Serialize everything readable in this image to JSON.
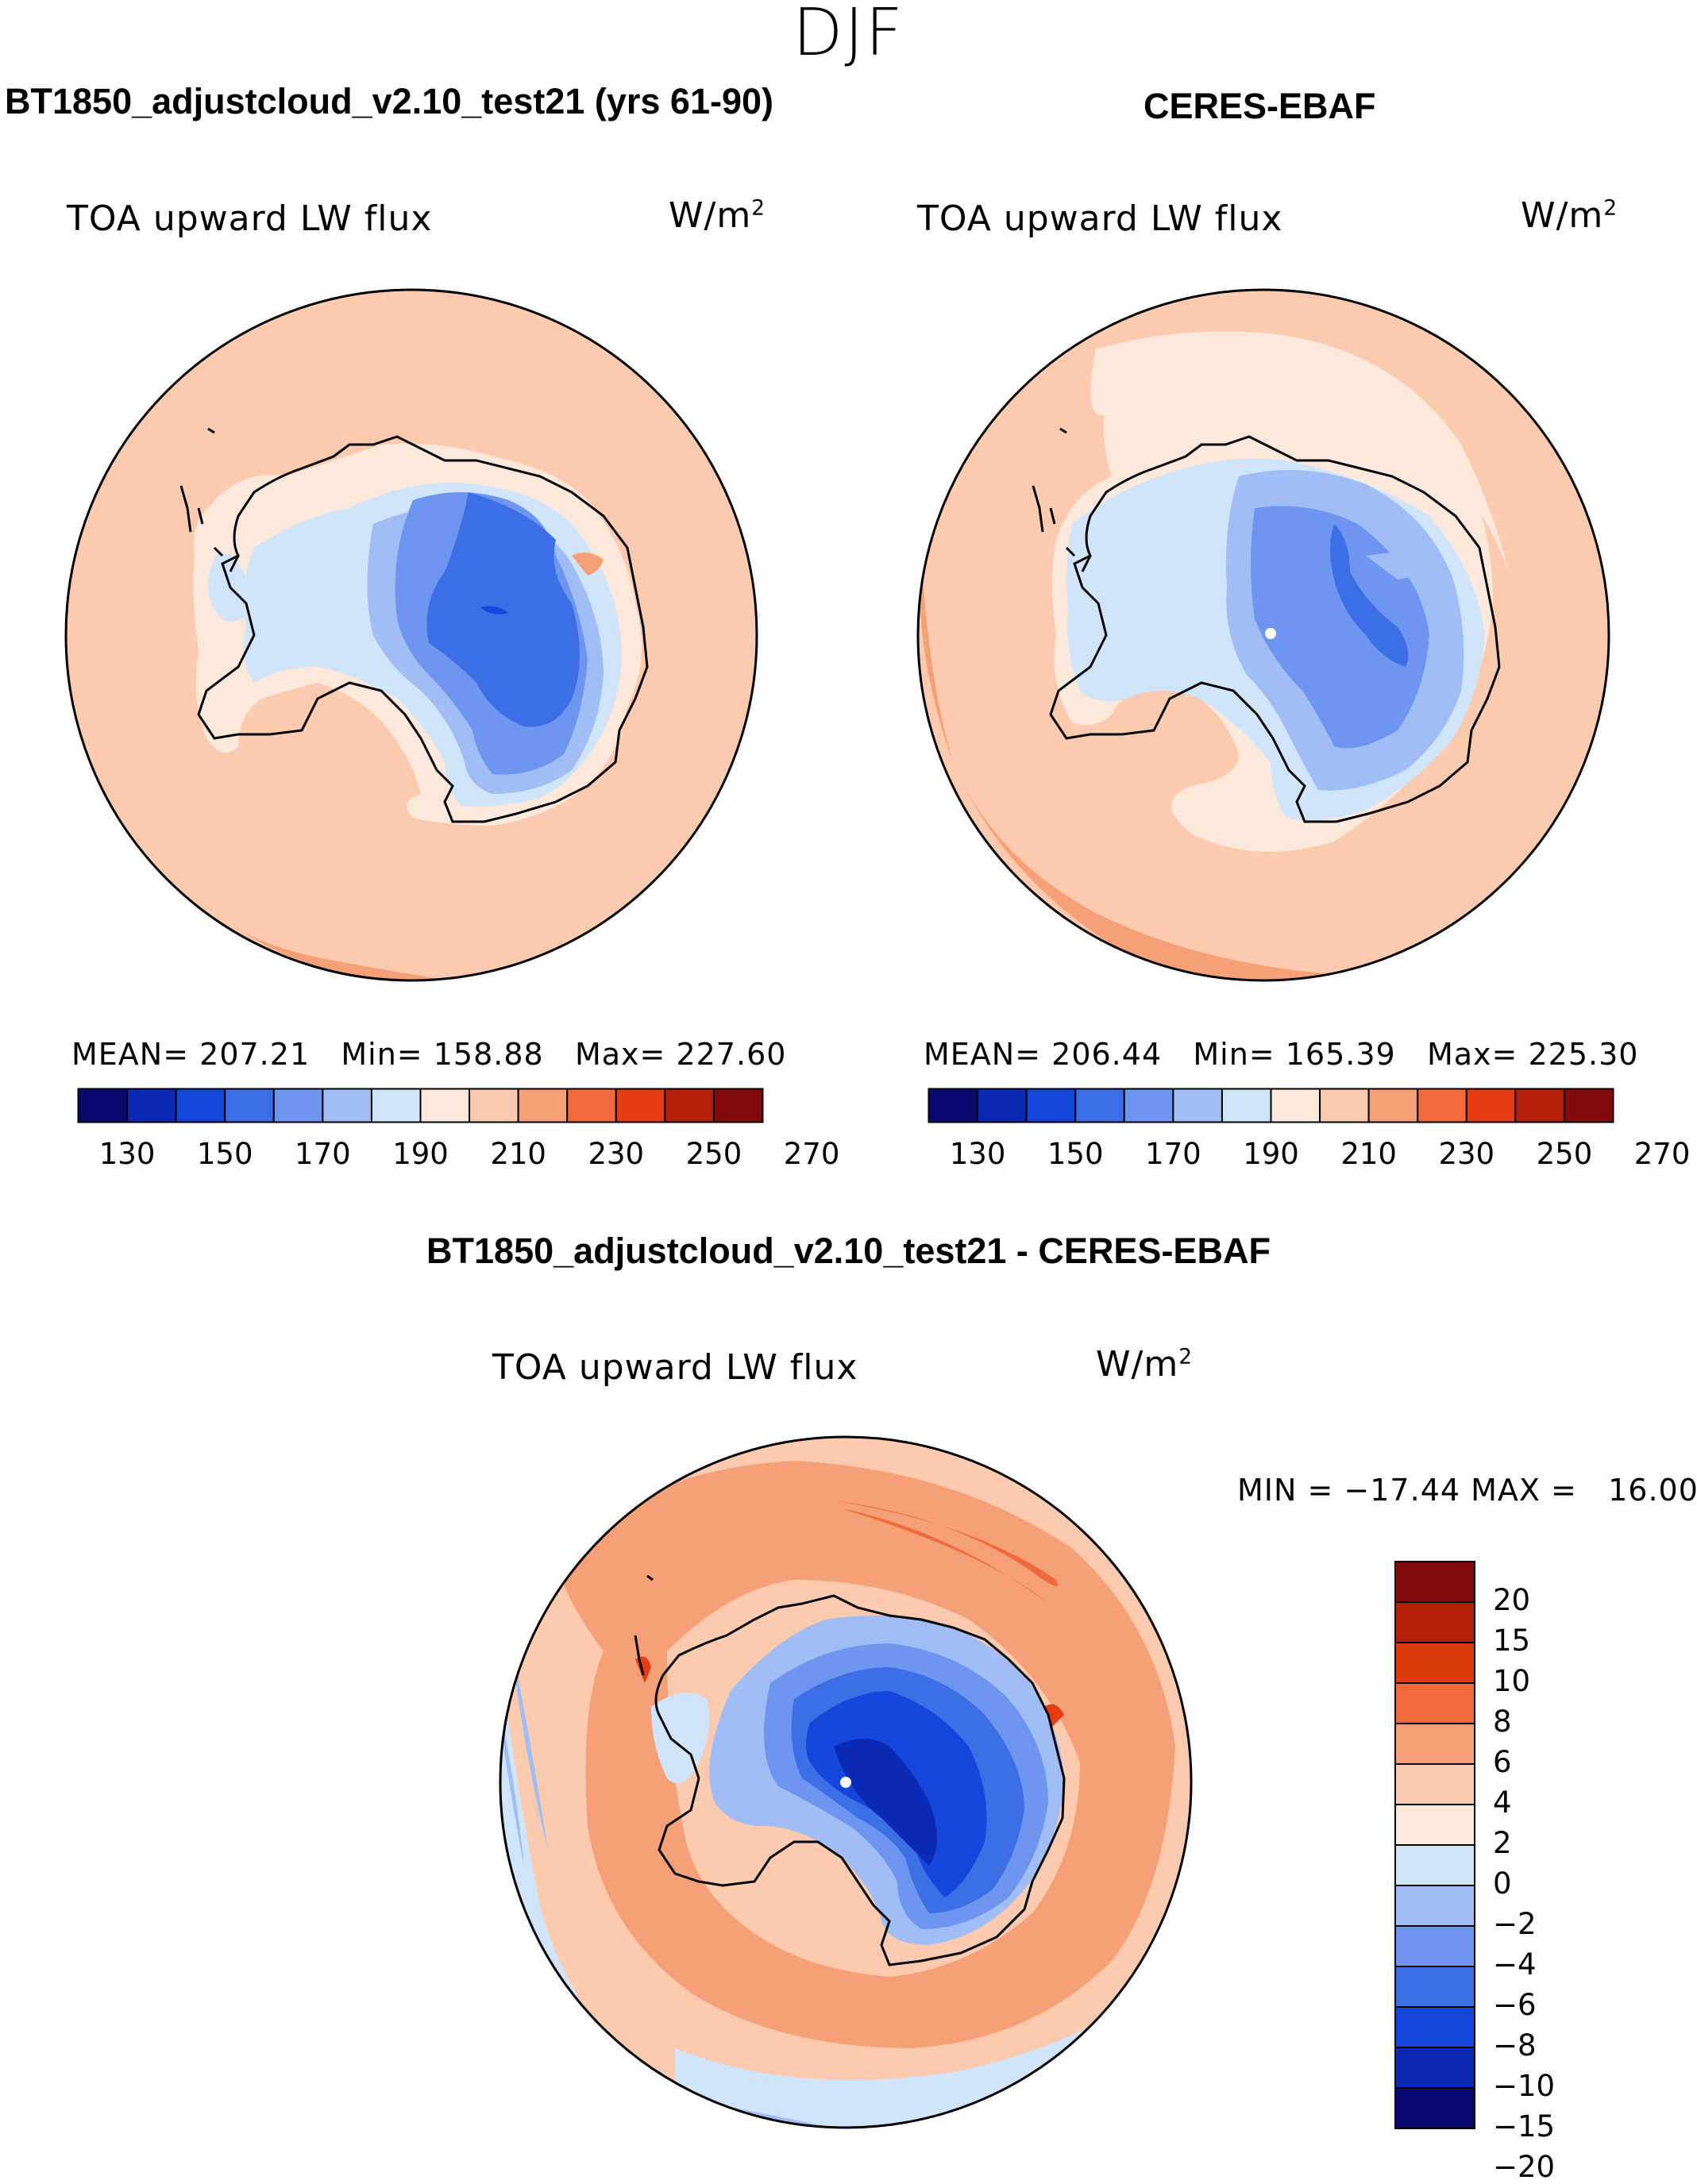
{
  "season": "DJF",
  "panels": [
    {
      "title": "BT1850_adjustcloud_v2.10_test21 (yrs 61-90)",
      "variable": "TOA upward LW flux",
      "units_base": "W/m",
      "units_exp": "2",
      "mean_label": "MEAN=",
      "mean": "207.21",
      "min_label": "Min=",
      "min": "158.88",
      "max_label": "Max=",
      "max": "227.60"
    },
    {
      "title": "CERES-EBAF",
      "variable": "TOA upward LW flux",
      "units_base": "W/m",
      "units_exp": "2",
      "mean_label": "MEAN=",
      "mean": "206.44",
      "min_label": "Min=",
      "min": "165.39",
      "max_label": "Max=",
      "max": "225.30"
    },
    {
      "title": "BT1850_adjustcloud_v2.10_test21 - CERES-EBAF",
      "variable": "TOA upward LW flux",
      "units_base": "W/m",
      "units_exp": "2",
      "minmax_text": "MIN = −17.44 MAX =   16.00"
    }
  ],
  "colorbar_abs": {
    "ticks": [
      "130",
      "150",
      "170",
      "190",
      "210",
      "230",
      "250",
      "270"
    ],
    "colors": [
      "#08086e",
      "#0a2ab4",
      "#1446dc",
      "#3c6ee6",
      "#6e96f0",
      "#a0bef5",
      "#d0e4fa",
      "#fde8dc",
      "#fccaae",
      "#f6a078",
      "#f26a3c",
      "#e63c14",
      "#b4200a",
      "#820a0a"
    ]
  },
  "colorbar_diff": {
    "labels": [
      "20",
      "15",
      "10",
      "8",
      "6",
      "4",
      "2",
      "0",
      "−2",
      "−4",
      "−6",
      "−8",
      "−10",
      "−15",
      "−20"
    ],
    "colors": [
      "#820a0a",
      "#b4200a",
      "#dc3c0a",
      "#f26a3c",
      "#f6a078",
      "#fccaae",
      "#fde8dc",
      "#d0e4fa",
      "#a0bef5",
      "#6e96f0",
      "#3c6ee6",
      "#1446dc",
      "#0a2ab4",
      "#08086e"
    ]
  },
  "chart_data": [
    {
      "type": "heatmap",
      "title": "BT1850_adjustcloud_v2.10_test21 (yrs 61-90)",
      "field": "TOA upward LW flux",
      "units": "W/m2",
      "season": "DJF",
      "projection": "south polar stereographic",
      "mean": 207.21,
      "min": 158.88,
      "max": 227.6,
      "levels": [
        130,
        140,
        150,
        160,
        170,
        180,
        190,
        200,
        210,
        220,
        230,
        240,
        250,
        260,
        270
      ]
    },
    {
      "type": "heatmap",
      "title": "CERES-EBAF",
      "field": "TOA upward LW flux",
      "units": "W/m2",
      "season": "DJF",
      "projection": "south polar stereographic",
      "mean": 206.44,
      "min": 165.39,
      "max": 225.3,
      "levels": [
        130,
        140,
        150,
        160,
        170,
        180,
        190,
        200,
        210,
        220,
        230,
        240,
        250,
        260,
        270
      ]
    },
    {
      "type": "heatmap",
      "title": "BT1850_adjustcloud_v2.10_test21 - CERES-EBAF",
      "field": "TOA upward LW flux",
      "units": "W/m2",
      "season": "DJF",
      "projection": "south polar stereographic",
      "min": -17.44,
      "max": 16.0,
      "levels": [
        -20,
        -15,
        -10,
        -8,
        -6,
        -4,
        -2,
        0,
        2,
        4,
        6,
        8,
        10,
        15,
        20
      ]
    }
  ]
}
